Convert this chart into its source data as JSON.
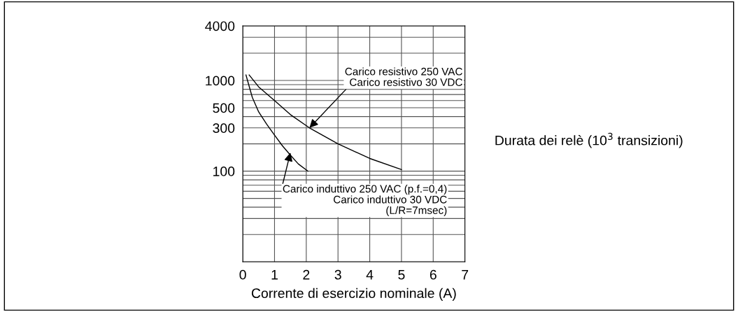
{
  "chart_data": {
    "type": "line",
    "xlabel": "Corrente di esercizio nominale (A)",
    "ylabel": "Durata dei relè (10$^{3}$ transizioni)",
    "log": "y",
    "xlim": [
      0,
      7
    ],
    "xticks": [
      0,
      1,
      2,
      3,
      4,
      5,
      6,
      7
    ],
    "ylim": [
      10,
      4000
    ],
    "yticks": [
      100,
      300,
      500,
      1000,
      4000
    ],
    "grid": true,
    "line_style": "solid",
    "marker": "none",
    "series": [
      {
        "color": "#000000",
        "x": [
          0.2,
          0.5,
          1,
          1.5,
          2.1,
          3,
          4,
          5
        ],
        "values": [
          1150,
          850,
          600,
          420,
          300,
          200,
          138,
          104
        ]
      },
      {
        "color": "#000000",
        "x": [
          0.1,
          0.3,
          0.5,
          0.75,
          1,
          1.25,
          1.5,
          1.75,
          2.05
        ],
        "values": [
          1150,
          650,
          450,
          330,
          250,
          190,
          150,
          120,
          100
        ]
      }
    ],
    "annotations": [
      {
        "text": "Carico resistivo 250 VAC\nCarico resistivo 30 VDC",
        "x": 2.1,
        "y": 300
      },
      {
        "text": "Carico induttivo 250 VAC (p.f.=0,4)\nCarico induttivo 30 VDC\n(L/R=7msec)",
        "x": 1.5,
        "y": 160
      }
    ]
  }
}
